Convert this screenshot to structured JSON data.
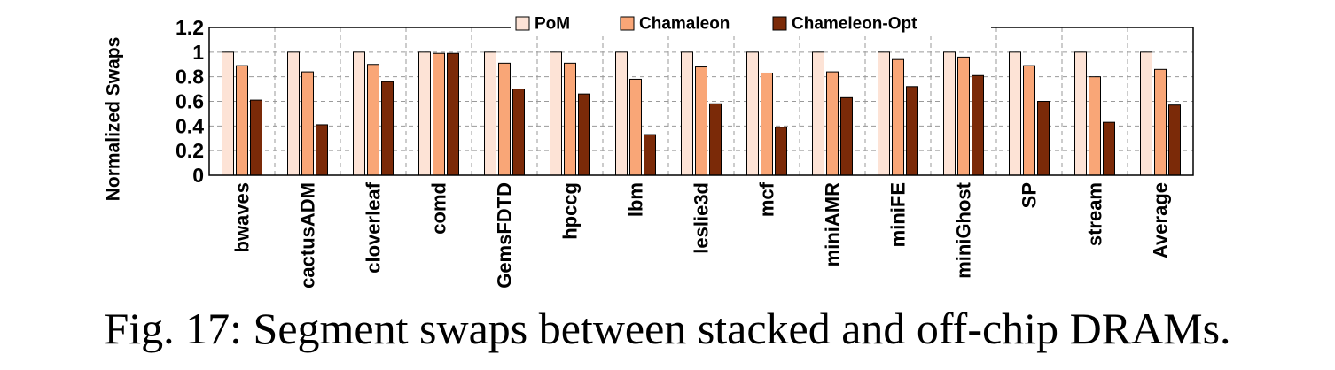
{
  "chart_data": {
    "type": "bar",
    "ylabel": "Normalized Swaps",
    "xlabel": "",
    "ylim": [
      0,
      1.2
    ],
    "yticks": [
      "0",
      "0.2",
      "0.4",
      "0.6",
      "0.8",
      "1",
      "1.2"
    ],
    "ytick_values": [
      0,
      0.2,
      0.4,
      0.6,
      0.8,
      1.0,
      1.2
    ],
    "grid": "dashed",
    "legend_position": "top",
    "categories": [
      "bwaves",
      "cactusADM",
      "cloverleaf",
      "comd",
      "GemsFDTD",
      "hpccg",
      "lbm",
      "leslie3d",
      "mcf",
      "miniAMR",
      "miniFE",
      "miniGhost",
      "SP",
      "stream",
      "Average"
    ],
    "series": [
      {
        "name": "PoM",
        "color": "#FDE3D6",
        "values": [
          1,
          1,
          1,
          1,
          1,
          1,
          1,
          1,
          1,
          1,
          1,
          1,
          1,
          1,
          1
        ]
      },
      {
        "name": "Chamaleon",
        "color": "#F9A677",
        "values": [
          0.89,
          0.84,
          0.9,
          0.99,
          0.91,
          0.91,
          0.78,
          0.88,
          0.83,
          0.84,
          0.94,
          0.96,
          0.89,
          0.8,
          0.86
        ]
      },
      {
        "name": "Chameleon-Opt",
        "color": "#7B2A08",
        "values": [
          0.61,
          0.41,
          0.76,
          0.99,
          0.7,
          0.66,
          0.33,
          0.58,
          0.39,
          0.63,
          0.72,
          0.81,
          0.6,
          0.43,
          0.57
        ]
      }
    ]
  },
  "caption": "Fig. 17: Segment swaps between stacked and off-chip DRAMs."
}
